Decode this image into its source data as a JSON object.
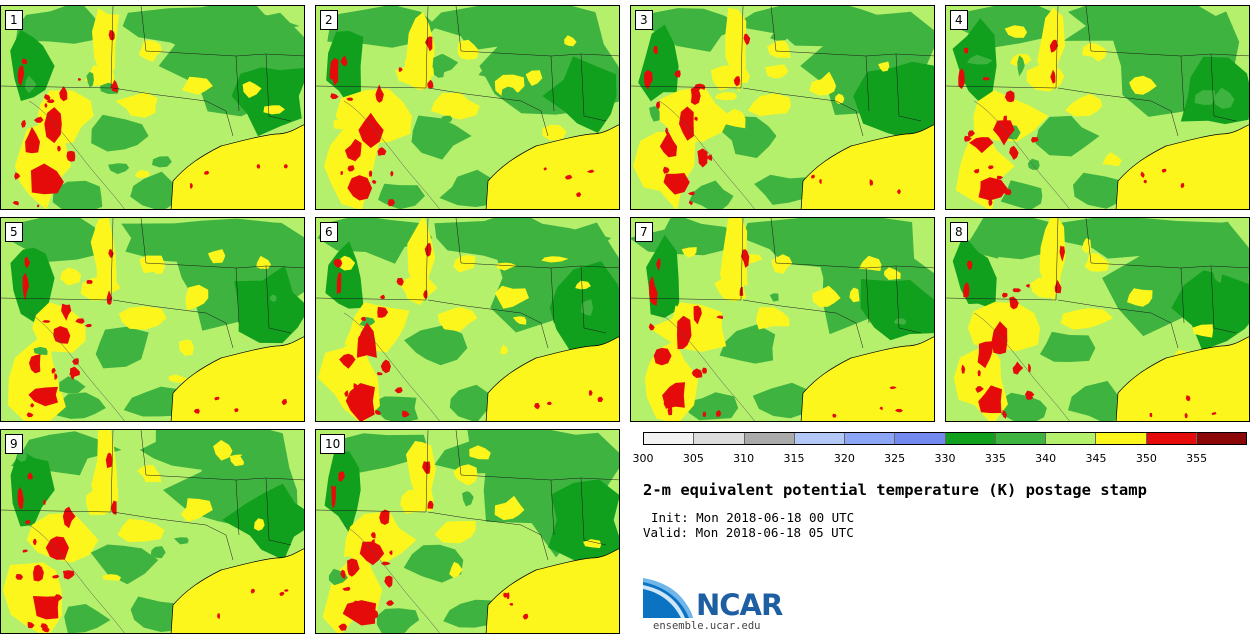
{
  "panels": [
    {
      "label": "1"
    },
    {
      "label": "2"
    },
    {
      "label": "3"
    },
    {
      "label": "4"
    },
    {
      "label": "5"
    },
    {
      "label": "6"
    },
    {
      "label": "7"
    },
    {
      "label": "8"
    },
    {
      "label": "9"
    },
    {
      "label": "10"
    }
  ],
  "colorbar": {
    "colors": [
      "#f2f2f2",
      "#dcdcdc",
      "#aaaaaa",
      "#b4c8f8",
      "#8ca6f5",
      "#7389ef",
      "#10a01e",
      "#3fb33f",
      "#b5f06c",
      "#fdf61d",
      "#e50b0b",
      "#8c0707"
    ],
    "ticks": [
      "300",
      "305",
      "310",
      "315",
      "320",
      "325",
      "330",
      "335",
      "340",
      "345",
      "350",
      "355"
    ]
  },
  "title": "2-m equivalent potential temperature (K) postage stamp",
  "init": "Init: Mon 2018-06-18 00 UTC",
  "valid": "Valid: Mon 2018-06-18 05 UTC",
  "logo": {
    "text": "NCAR",
    "url": "ensemble.ucar.edu"
  }
}
